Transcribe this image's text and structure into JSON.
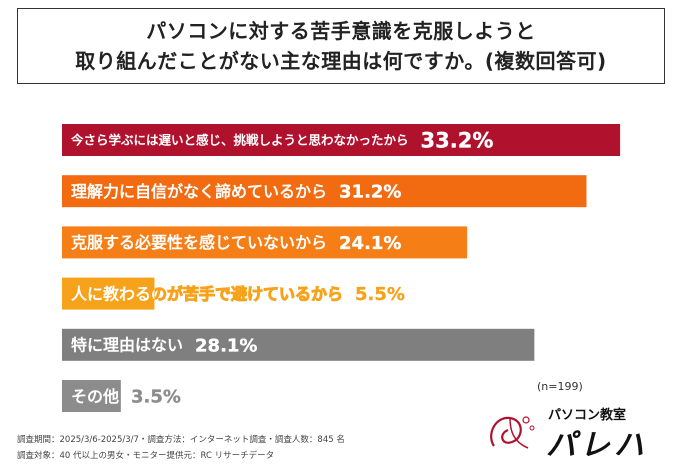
{
  "title": {
    "line1": "パソコンに対する苦手意識を克服しようと",
    "line2": "取り組んだことがない主な理由は何ですか。(複数回答可)"
  },
  "chart_data": {
    "type": "bar",
    "orientation": "horizontal",
    "categories": [
      "今さら学ぶには遅いと感じ、挑戦しようと思わなかったから",
      "理解力に自信がなく諦めているから",
      "克服する必要性を感じていないから",
      "人に教わるのが苦手で避けているから",
      "特に理由はない",
      "その他"
    ],
    "values": [
      33.2,
      31.2,
      24.1,
      5.5,
      28.1,
      3.5
    ],
    "value_labels": [
      "33.2%",
      "31.2%",
      "24.1%",
      "5.5%",
      "28.1%",
      "3.5%"
    ],
    "colors": [
      "#b0122e",
      "#f26b11",
      "#f57e17",
      "#f7a21b",
      "#7f7f7f",
      "#8c8c8c"
    ],
    "xlim": [
      0,
      36
    ],
    "grid": false,
    "legend": "none"
  },
  "sample_note": "(n=199)",
  "footnotes": {
    "line1": "調査期間：2025/3/6-2025/3/7・調査方法：インターネット調査・調査人数：845 名",
    "line2": "調査対象：40 代以上の男女・モニター提供元：RC リサーチデータ"
  },
  "logo": {
    "small": "パソコン教室",
    "main": "パレハ",
    "accent_color": "#b0122e"
  }
}
